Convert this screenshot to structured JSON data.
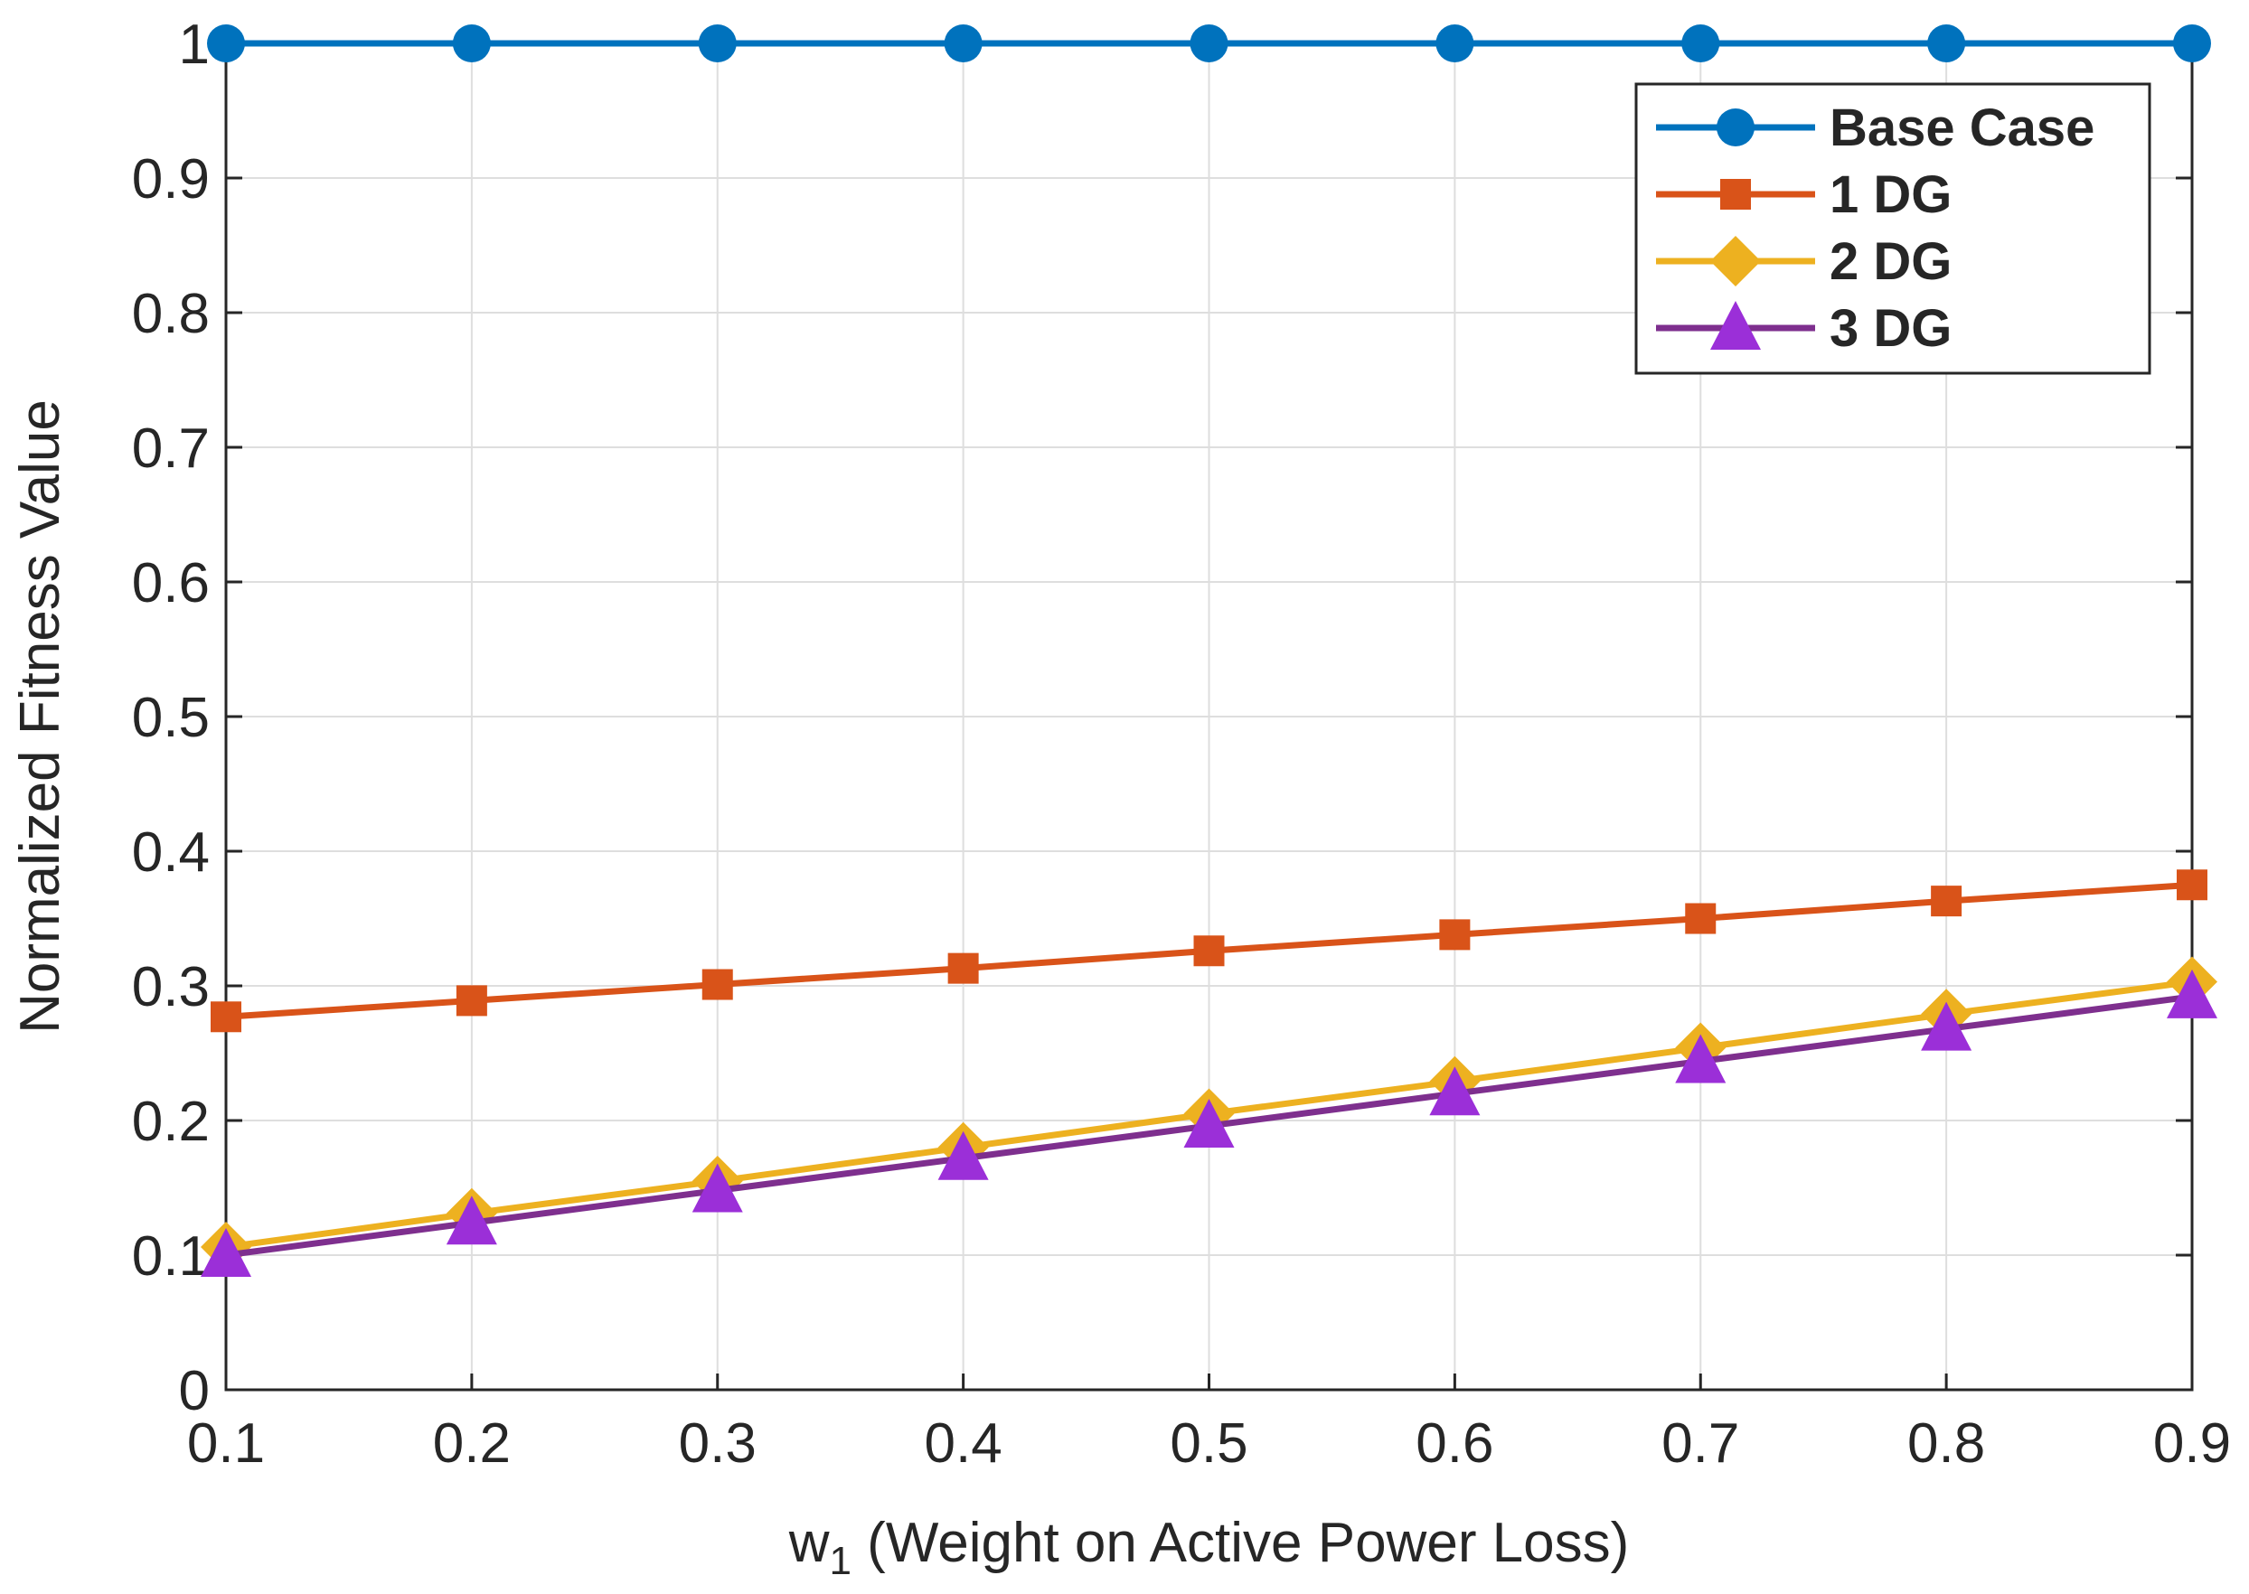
{
  "chart_data": {
    "type": "line",
    "title": "",
    "xlabel": "w",
    "xlabel_subscript": "1",
    "xlabel_rest": " (Weight on Active Power Loss)",
    "ylabel": "Normalized Fitness Value",
    "x": [
      0.1,
      0.2,
      0.3,
      0.4,
      0.5,
      0.6,
      0.7,
      0.8,
      0.9
    ],
    "xlim": [
      0.1,
      0.9
    ],
    "ylim": [
      0,
      1
    ],
    "xticks": [
      "0.1",
      "0.2",
      "0.3",
      "0.4",
      "0.5",
      "0.6",
      "0.7",
      "0.8",
      "0.9"
    ],
    "yticks": [
      "0",
      "0.1",
      "0.2",
      "0.3",
      "0.4",
      "0.5",
      "0.6",
      "0.7",
      "0.8",
      "0.9",
      "1"
    ],
    "grid": true,
    "legend_position": "top-right",
    "series": [
      {
        "name": "Base Case",
        "marker": "circle",
        "color": "#0072BD",
        "values": [
          1,
          1,
          1,
          1,
          1,
          1,
          1,
          1,
          1
        ]
      },
      {
        "name": "1 DG",
        "marker": "square",
        "color": "#D95319",
        "values": [
          0.277,
          0.289,
          0.301,
          0.313,
          0.326,
          0.338,
          0.35,
          0.363,
          0.375
        ]
      },
      {
        "name": "2 DG",
        "marker": "diamond",
        "color": "#EDB120",
        "values": [
          0.106,
          0.131,
          0.155,
          0.18,
          0.205,
          0.229,
          0.254,
          0.279,
          0.303
        ]
      },
      {
        "name": "3 DG",
        "marker": "triangle",
        "color": "#7E2F8E",
        "marker_color": "#9B2FD8",
        "values": [
          0.1,
          0.124,
          0.148,
          0.172,
          0.196,
          0.22,
          0.244,
          0.268,
          0.292
        ]
      }
    ]
  }
}
